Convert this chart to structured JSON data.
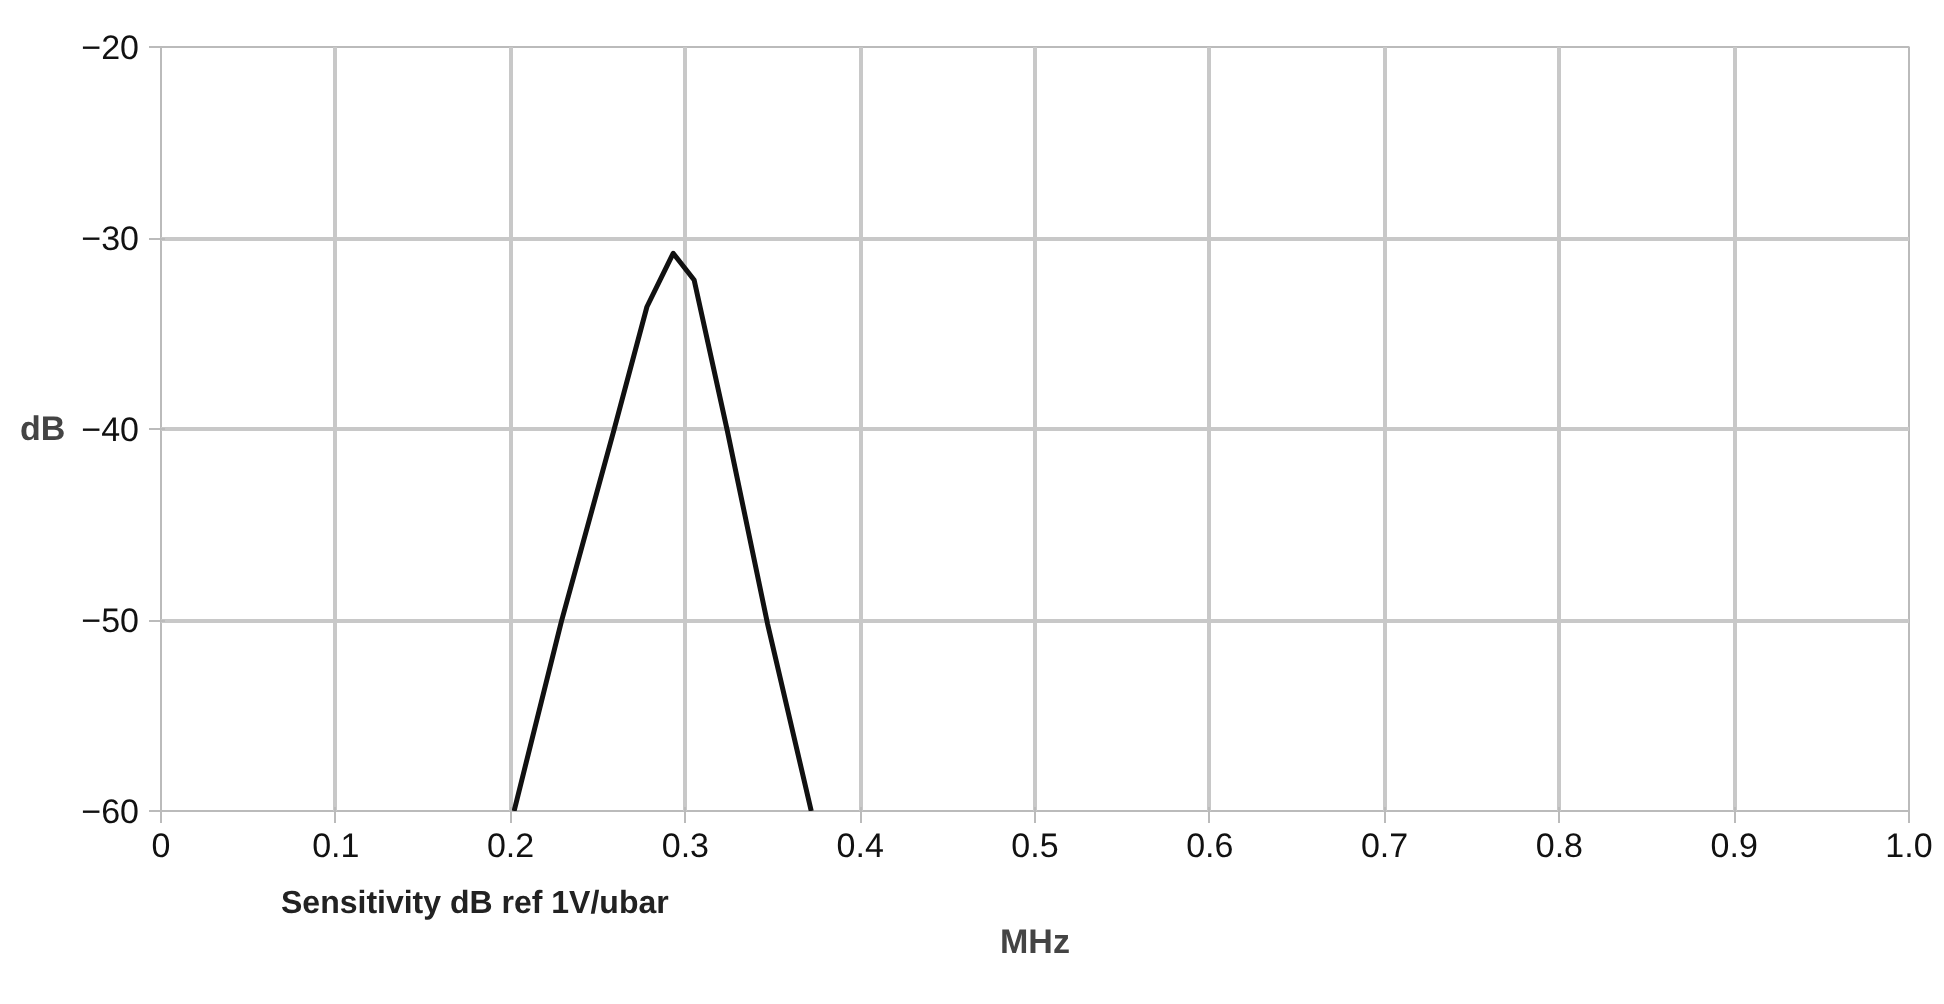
{
  "chart_data": {
    "type": "line",
    "xlabel": "MHz",
    "ylabel": "dB",
    "annotations": [
      "Sensitivity dB ref 1V/ubar"
    ],
    "x": [
      0.202,
      0.229,
      0.259,
      0.278,
      0.293,
      0.305,
      0.324,
      0.347,
      0.372
    ],
    "series": [
      {
        "color": "#111111",
        "values": [
          -60,
          -50.1,
          -40.1,
          -33.6,
          -30.8,
          -32.2,
          -40.1,
          -50.2,
          -60
        ]
      }
    ],
    "xlim": [
      0,
      1.0
    ],
    "xticks": [
      0,
      0.1,
      0.2,
      0.3,
      0.4,
      0.5,
      0.6,
      0.7,
      0.8,
      0.9,
      {
        "value": 1.0,
        "label": "1.0"
      }
    ],
    "ylim": [
      -60,
      -20
    ],
    "yticks": [
      -20,
      -30,
      -40,
      -50,
      -60
    ],
    "grid": true,
    "marker": "none",
    "line_style": "solid"
  }
}
